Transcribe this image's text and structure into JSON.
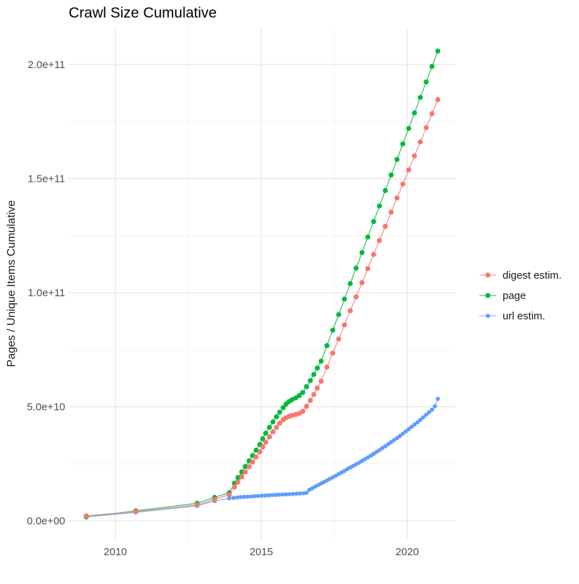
{
  "chart_data": {
    "type": "line",
    "title": "Crawl Size Cumulative",
    "xlabel": "",
    "ylabel": "Pages / Unique Items Cumulative",
    "grid": true,
    "legend_position": "right",
    "x_range": [
      2008.4,
      2021.66
    ],
    "y_range": [
      -8600000000.0,
      216300000000.0
    ],
    "x_ticks": {
      "values": [
        2010,
        2015,
        2020
      ],
      "labels": [
        "2010",
        "2015",
        "2020"
      ]
    },
    "x_minor": [
      2012.5,
      2017.5
    ],
    "y_ticks": {
      "values": [
        0,
        50000000000.0,
        100000000000.0,
        150000000000.0,
        200000000000.0
      ],
      "labels": [
        "0.0e+00",
        "5.0e+10",
        "1.0e+11",
        "1.5e+11",
        "2.0e+11"
      ]
    },
    "y_minor": [
      25000000000.0,
      75000000000.0,
      125000000000.0,
      175000000000.0
    ],
    "series": [
      {
        "name": "digest estim.",
        "color": "#F8766D",
        "z": 3,
        "point_radius": 3.6,
        "points": [
          [
            2009.0,
            2200000000.0
          ],
          [
            2010.7,
            4100000000.0
          ],
          [
            2012.8,
            7000000000.0
          ],
          [
            2013.4,
            9400000000.0
          ],
          [
            2013.9,
            11400000000.0
          ],
          [
            2014.08,
            14800000000.0
          ],
          [
            2014.2,
            17000000000.0
          ],
          [
            2014.33,
            19300000000.0
          ],
          [
            2014.45,
            21400000000.0
          ],
          [
            2014.58,
            23700000000.0
          ],
          [
            2014.7,
            25800000000.0
          ],
          [
            2014.82,
            28000000000.0
          ],
          [
            2014.95,
            30300000000.0
          ],
          [
            2015.05,
            32400000000.0
          ],
          [
            2015.15,
            34400000000.0
          ],
          [
            2015.28,
            36800000000.0
          ],
          [
            2015.4,
            39000000000.0
          ],
          [
            2015.52,
            41000000000.0
          ],
          [
            2015.63,
            42800000000.0
          ],
          [
            2015.75,
            44300000000.0
          ],
          [
            2015.85,
            45200000000.0
          ],
          [
            2015.95,
            45800000000.0
          ],
          [
            2016.05,
            46200000000.0
          ],
          [
            2016.18,
            46600000000.0
          ],
          [
            2016.3,
            47100000000.0
          ],
          [
            2016.42,
            48000000000.0
          ],
          [
            2016.55,
            50200000000.0
          ],
          [
            2016.68,
            52800000000.0
          ],
          [
            2016.8,
            55400000000.0
          ],
          [
            2016.92,
            58200000000.0
          ],
          [
            2017.05,
            61200000000.0
          ],
          [
            2017.25,
            67400000000.0
          ],
          [
            2017.45,
            73500000000.0
          ],
          [
            2017.65,
            79700000000.0
          ],
          [
            2017.85,
            85900000000.0
          ],
          [
            2018.05,
            92100000000.0
          ],
          [
            2018.25,
            98200000000.0
          ],
          [
            2018.45,
            104400000000.0
          ],
          [
            2018.65,
            110600000000.0
          ],
          [
            2018.85,
            116800000000.0
          ],
          [
            2019.05,
            122900000000.0
          ],
          [
            2019.25,
            129100000000.0
          ],
          [
            2019.45,
            135300000000.0
          ],
          [
            2019.65,
            141500000000.0
          ],
          [
            2019.85,
            147600000000.0
          ],
          [
            2020.05,
            153800000000.0
          ],
          [
            2020.25,
            160000000000.0
          ],
          [
            2020.45,
            166100000000.0
          ],
          [
            2020.65,
            172300000000.0
          ],
          [
            2020.85,
            178500000000.0
          ],
          [
            2021.05,
            184600000000.0
          ]
        ]
      },
      {
        "name": "page",
        "color": "#00BA38",
        "z": 1,
        "point_radius": 3.6,
        "points": [
          [
            2009.0,
            1700000000.0
          ],
          [
            2010.7,
            4400000000.0
          ],
          [
            2012.8,
            7700000000.0
          ],
          [
            2013.4,
            10300000000.0
          ],
          [
            2013.9,
            12300000000.0
          ],
          [
            2014.08,
            16500000000.0
          ],
          [
            2014.2,
            19000000000.0
          ],
          [
            2014.33,
            21500000000.0
          ],
          [
            2014.45,
            23800000000.0
          ],
          [
            2014.58,
            26300000000.0
          ],
          [
            2014.7,
            28600000000.0
          ],
          [
            2014.82,
            31000000000.0
          ],
          [
            2014.95,
            33500000000.0
          ],
          [
            2015.05,
            36000000000.0
          ],
          [
            2015.15,
            38400000000.0
          ],
          [
            2015.28,
            41000000000.0
          ],
          [
            2015.4,
            43400000000.0
          ],
          [
            2015.52,
            45600000000.0
          ],
          [
            2015.63,
            47600000000.0
          ],
          [
            2015.75,
            49600000000.0
          ],
          [
            2015.85,
            51200000000.0
          ],
          [
            2015.95,
            52300000000.0
          ],
          [
            2016.05,
            53100000000.0
          ],
          [
            2016.18,
            53900000000.0
          ],
          [
            2016.3,
            54900000000.0
          ],
          [
            2016.42,
            56300000000.0
          ],
          [
            2016.55,
            58800000000.0
          ],
          [
            2016.68,
            61500000000.0
          ],
          [
            2016.8,
            64200000000.0
          ],
          [
            2016.92,
            67000000000.0
          ],
          [
            2017.05,
            70000000000.0
          ],
          [
            2017.25,
            76800000000.0
          ],
          [
            2017.45,
            83600000000.0
          ],
          [
            2017.65,
            90400000000.0
          ],
          [
            2017.85,
            97200000000.0
          ],
          [
            2018.05,
            104000000000.0
          ],
          [
            2018.25,
            110800000000.0
          ],
          [
            2018.45,
            117600000000.0
          ],
          [
            2018.65,
            124400000000.0
          ],
          [
            2018.85,
            131200000000.0
          ],
          [
            2019.05,
            138000000000.0
          ],
          [
            2019.25,
            144800000000.0
          ],
          [
            2019.45,
            151600000000.0
          ],
          [
            2019.65,
            158400000000.0
          ],
          [
            2019.85,
            165200000000.0
          ],
          [
            2020.05,
            172000000000.0
          ],
          [
            2020.25,
            178800000000.0
          ],
          [
            2020.45,
            185600000000.0
          ],
          [
            2020.65,
            192400000000.0
          ],
          [
            2020.85,
            199200000000.0
          ],
          [
            2021.05,
            205900000000.0
          ]
        ]
      },
      {
        "name": "url estim.",
        "color": "#619CFF",
        "z": 2,
        "point_radius": 3.0,
        "points": [
          [
            2009.0,
            1800000000.0
          ],
          [
            2010.7,
            3700000000.0
          ],
          [
            2012.8,
            6600000000.0
          ],
          [
            2013.4,
            8700000000.0
          ],
          [
            2013.9,
            9900000000.0
          ],
          [
            2014.05,
            10100000000.0
          ],
          [
            2014.17,
            10250000000.0
          ],
          [
            2014.29,
            10400000000.0
          ],
          [
            2014.41,
            10500000000.0
          ],
          [
            2014.53,
            10600000000.0
          ],
          [
            2014.65,
            10700000000.0
          ],
          [
            2014.77,
            10800000000.0
          ],
          [
            2014.89,
            10900000000.0
          ],
          [
            2015.01,
            11000000000.0
          ],
          [
            2015.13,
            11100000000.0
          ],
          [
            2015.25,
            11200000000.0
          ],
          [
            2015.37,
            11300000000.0
          ],
          [
            2015.49,
            11400000000.0
          ],
          [
            2015.61,
            11500000000.0
          ],
          [
            2015.73,
            11550000000.0
          ],
          [
            2015.85,
            11650000000.0
          ],
          [
            2015.97,
            11700000000.0
          ],
          [
            2016.09,
            11800000000.0
          ],
          [
            2016.21,
            11900000000.0
          ],
          [
            2016.33,
            12000000000.0
          ],
          [
            2016.45,
            12100000000.0
          ],
          [
            2016.55,
            12300000000.0
          ],
          [
            2016.65,
            13600000000.0
          ],
          [
            2016.75,
            14300000000.0
          ],
          [
            2016.85,
            15000000000.0
          ],
          [
            2016.95,
            15700000000.0
          ],
          [
            2017.05,
            16400000000.0
          ],
          [
            2017.15,
            17000000000.0
          ],
          [
            2017.25,
            17700000000.0
          ],
          [
            2017.35,
            18400000000.0
          ],
          [
            2017.45,
            19100000000.0
          ],
          [
            2017.55,
            19800000000.0
          ],
          [
            2017.65,
            20500000000.0
          ],
          [
            2017.75,
            21200000000.0
          ],
          [
            2017.85,
            21900000000.0
          ],
          [
            2017.95,
            22700000000.0
          ],
          [
            2018.05,
            23400000000.0
          ],
          [
            2018.15,
            24100000000.0
          ],
          [
            2018.25,
            24800000000.0
          ],
          [
            2018.35,
            25500000000.0
          ],
          [
            2018.45,
            26300000000.0
          ],
          [
            2018.55,
            27000000000.0
          ],
          [
            2018.65,
            27800000000.0
          ],
          [
            2018.75,
            28600000000.0
          ],
          [
            2018.85,
            29400000000.0
          ],
          [
            2018.95,
            30200000000.0
          ],
          [
            2019.05,
            31000000000.0
          ],
          [
            2019.15,
            31900000000.0
          ],
          [
            2019.25,
            32700000000.0
          ],
          [
            2019.35,
            33600000000.0
          ],
          [
            2019.45,
            34500000000.0
          ],
          [
            2019.55,
            35400000000.0
          ],
          [
            2019.65,
            36300000000.0
          ],
          [
            2019.75,
            37200000000.0
          ],
          [
            2019.85,
            38200000000.0
          ],
          [
            2019.95,
            39200000000.0
          ],
          [
            2020.05,
            40200000000.0
          ],
          [
            2020.15,
            41200000000.0
          ],
          [
            2020.25,
            42200000000.0
          ],
          [
            2020.35,
            43200000000.0
          ],
          [
            2020.45,
            44300000000.0
          ],
          [
            2020.55,
            45400000000.0
          ],
          [
            2020.65,
            46500000000.0
          ],
          [
            2020.75,
            47600000000.0
          ],
          [
            2020.85,
            48700000000.0
          ],
          [
            2020.95,
            50200000000.0
          ],
          [
            2021.05,
            53500000000.0
          ]
        ]
      }
    ]
  }
}
